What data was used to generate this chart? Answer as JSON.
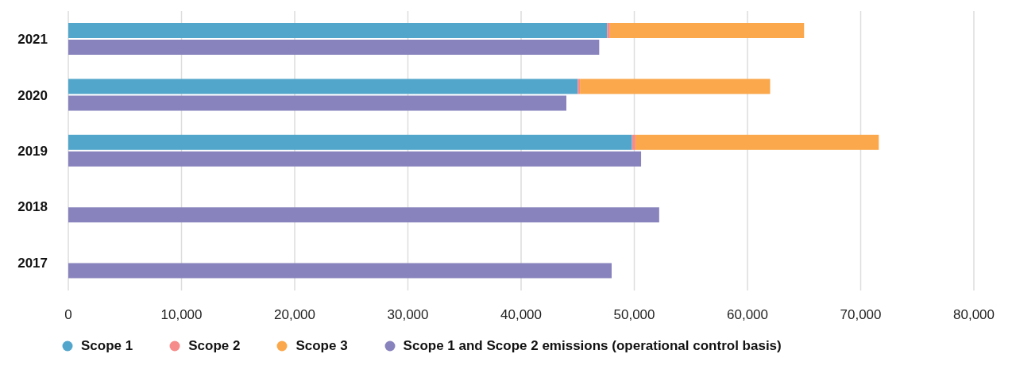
{
  "chart_data": {
    "type": "bar",
    "orientation": "horizontal",
    "categories": [
      "2021",
      "2020",
      "2019",
      "2018",
      "2017"
    ],
    "series": [
      {
        "name": "Scope 1",
        "color": "#53a6cb",
        "values": [
          47600,
          45000,
          49800,
          null,
          null
        ],
        "base": [
          0,
          0,
          0,
          null,
          null
        ]
      },
      {
        "name": "Scope 2",
        "color": "#f68b8b",
        "values": [
          250,
          200,
          300,
          null,
          null
        ],
        "base": [
          47600,
          45000,
          49800,
          null,
          null
        ]
      },
      {
        "name": "Scope 3",
        "color": "#faa84b",
        "values": [
          17150,
          16800,
          21500,
          null,
          null
        ],
        "base": [
          47850,
          45200,
          50100,
          null,
          null
        ]
      },
      {
        "name": "Scope 1 and Scope 2 emissions (operational control basis)",
        "color": "#8883bd",
        "values": [
          46900,
          44000,
          50600,
          52200,
          48000
        ]
      }
    ],
    "xlim": [
      0,
      80000
    ],
    "xticks": [
      {
        "value": 0,
        "label": "0"
      },
      {
        "value": 10000,
        "label": "10,000"
      },
      {
        "value": 20000,
        "label": "20,000"
      },
      {
        "value": 30000,
        "label": "30,000"
      },
      {
        "value": 40000,
        "label": "40,000"
      },
      {
        "value": 50000,
        "label": "50,000"
      },
      {
        "value": 60000,
        "label": "60,000"
      },
      {
        "value": 70000,
        "label": "70,000"
      },
      {
        "value": 80000,
        "label": "80,000"
      }
    ],
    "grid": "x",
    "legend": "bottom left",
    "marker": "circle"
  }
}
